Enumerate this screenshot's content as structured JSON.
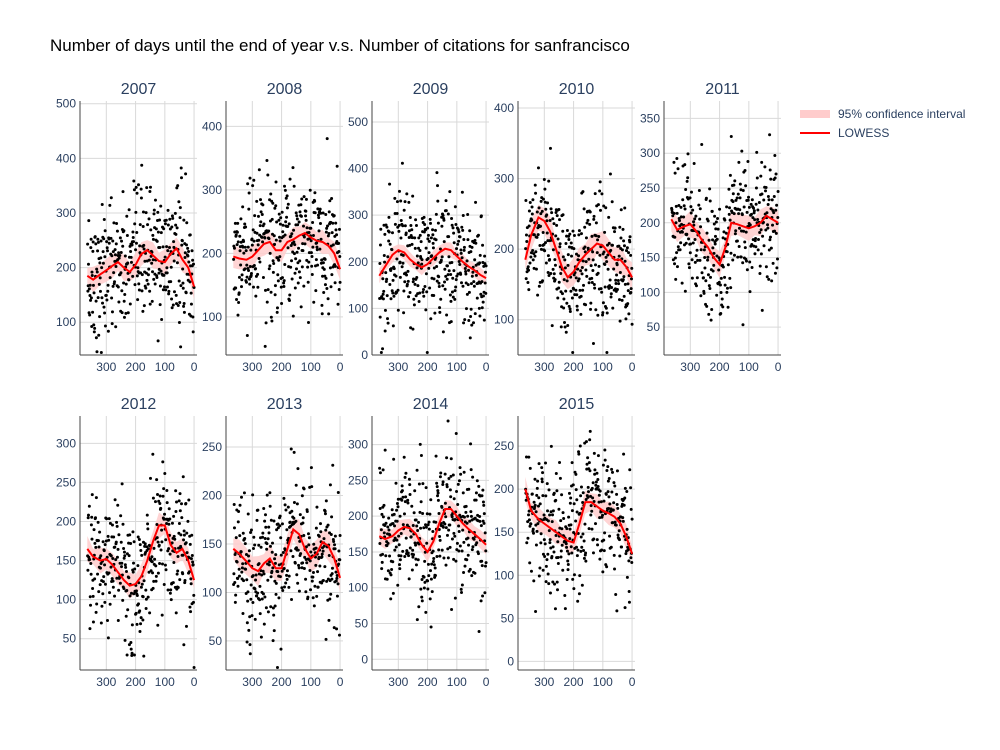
{
  "chart_data": {
    "type": "scatter",
    "title": "Number of days until the end of year v.s. Number of citations for sanfrancisco",
    "xlabel": "",
    "ylabel": "",
    "x_reversed": true,
    "xlim": [
      390,
      -10
    ],
    "x_ticks": [
      300,
      200,
      100,
      0
    ],
    "grid": true,
    "legend": {
      "placement": "top-right",
      "entries": [
        {
          "name": "95% confidence interval",
          "color": "#ffcccc"
        },
        {
          "name": "LOWESS",
          "color": "#ff0000"
        }
      ]
    },
    "colors": {
      "points": "#000000",
      "lowess": "#ff0000",
      "band": "#ffcccc",
      "grid": "#d9d9d9",
      "axis": "#444444"
    },
    "panels": [
      {
        "year": "2007",
        "ylim": [
          40,
          505
        ],
        "y_ticks": [
          100,
          200,
          300,
          400,
          500
        ],
        "lowess": {
          "x": [
            365,
            345,
            320,
            300,
            280,
            260,
            240,
            220,
            200,
            180,
            160,
            140,
            120,
            100,
            80,
            60,
            40,
            20,
            0
          ],
          "y": [
            185,
            178,
            188,
            195,
            203,
            210,
            200,
            192,
            205,
            225,
            232,
            222,
            212,
            210,
            225,
            235,
            215,
            200,
            165
          ]
        },
        "band_halfwidth": 20
      },
      {
        "year": "2008",
        "ylim": [
          40,
          440
        ],
        "y_ticks": [
          100,
          200,
          300,
          400
        ],
        "lowess": {
          "x": [
            365,
            345,
            320,
            300,
            280,
            260,
            240,
            220,
            200,
            180,
            160,
            140,
            120,
            100,
            80,
            60,
            40,
            20,
            0
          ],
          "y": [
            195,
            192,
            190,
            195,
            205,
            215,
            218,
            205,
            205,
            218,
            222,
            228,
            232,
            225,
            220,
            218,
            212,
            200,
            175
          ]
        },
        "band_halfwidth": 16
      },
      {
        "year": "2009",
        "ylim": [
          0,
          545
        ],
        "y_ticks": [
          0,
          100,
          200,
          300,
          400,
          500
        ],
        "lowess": {
          "x": [
            365,
            345,
            320,
            300,
            280,
            260,
            240,
            220,
            200,
            180,
            160,
            140,
            120,
            100,
            80,
            60,
            40,
            20,
            0
          ],
          "y": [
            170,
            190,
            215,
            225,
            220,
            205,
            195,
            188,
            195,
            208,
            220,
            228,
            225,
            212,
            200,
            190,
            182,
            172,
            165
          ]
        },
        "band_halfwidth": 14
      },
      {
        "year": "2010",
        "ylim": [
          50,
          410
        ],
        "y_ticks": [
          100,
          200,
          300,
          400
        ],
        "lowess": {
          "x": [
            365,
            345,
            320,
            300,
            280,
            260,
            240,
            220,
            200,
            180,
            160,
            140,
            120,
            100,
            80,
            60,
            40,
            20,
            0
          ],
          "y": [
            185,
            220,
            245,
            240,
            225,
            200,
            175,
            160,
            168,
            182,
            192,
            200,
            208,
            205,
            195,
            185,
            185,
            175,
            160
          ]
        },
        "band_halfwidth": 18
      },
      {
        "year": "2011",
        "ylim": [
          10,
          375
        ],
        "y_ticks": [
          50,
          100,
          150,
          200,
          250,
          300,
          350
        ],
        "lowess": {
          "x": [
            365,
            345,
            320,
            300,
            280,
            260,
            240,
            220,
            200,
            180,
            160,
            140,
            120,
            100,
            80,
            60,
            40,
            20,
            0
          ],
          "y": [
            205,
            190,
            195,
            198,
            188,
            175,
            165,
            150,
            140,
            165,
            200,
            198,
            195,
            192,
            195,
            200,
            210,
            205,
            200
          ]
        },
        "band_halfwidth": 16
      },
      {
        "year": "2012",
        "ylim": [
          10,
          335
        ],
        "y_ticks": [
          50,
          100,
          150,
          200,
          250,
          300
        ],
        "lowess": {
          "x": [
            365,
            345,
            320,
            300,
            280,
            260,
            240,
            220,
            200,
            180,
            160,
            140,
            120,
            100,
            80,
            60,
            40,
            20,
            0
          ],
          "y": [
            165,
            155,
            150,
            152,
            145,
            135,
            125,
            118,
            120,
            130,
            150,
            175,
            195,
            195,
            170,
            160,
            165,
            150,
            125
          ]
        },
        "band_halfwidth": 14
      },
      {
        "year": "2013",
        "ylim": [
          20,
          282
        ],
        "y_ticks": [
          50,
          100,
          150,
          200,
          250
        ],
        "lowess": {
          "x": [
            365,
            345,
            320,
            300,
            280,
            260,
            240,
            220,
            200,
            180,
            160,
            140,
            120,
            100,
            80,
            60,
            40,
            20,
            0
          ],
          "y": [
            145,
            140,
            132,
            125,
            122,
            130,
            135,
            125,
            125,
            145,
            165,
            160,
            145,
            135,
            140,
            152,
            148,
            135,
            115
          ]
        },
        "band_halfwidth": 13
      },
      {
        "year": "2014",
        "ylim": [
          -15,
          340
        ],
        "y_ticks": [
          0,
          50,
          100,
          150,
          200,
          250,
          300
        ],
        "lowess": {
          "x": [
            365,
            345,
            320,
            300,
            280,
            260,
            240,
            220,
            200,
            180,
            160,
            140,
            120,
            100,
            80,
            60,
            40,
            20,
            0
          ],
          "y": [
            172,
            168,
            172,
            180,
            185,
            183,
            175,
            160,
            150,
            165,
            190,
            210,
            210,
            200,
            190,
            182,
            175,
            168,
            160
          ]
        },
        "band_halfwidth": 12
      },
      {
        "year": "2015",
        "ylim": [
          -10,
          285
        ],
        "y_ticks": [
          0,
          50,
          100,
          150,
          200,
          250
        ],
        "lowess": {
          "x": [
            365,
            345,
            320,
            300,
            280,
            260,
            240,
            220,
            200,
            180,
            160,
            140,
            120,
            100,
            80,
            60,
            40,
            20,
            0
          ],
          "y": [
            200,
            175,
            165,
            160,
            155,
            150,
            145,
            140,
            138,
            160,
            185,
            185,
            180,
            175,
            172,
            168,
            160,
            145,
            125
          ]
        },
        "band_halfwidth": 12
      }
    ]
  }
}
